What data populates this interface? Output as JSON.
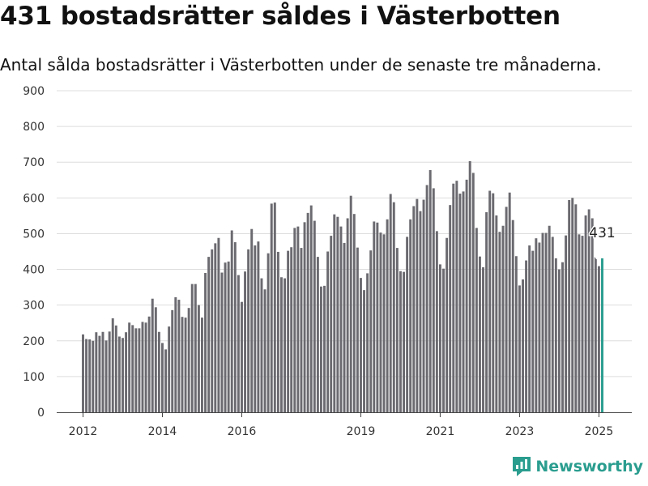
{
  "title": "431 bostadsrätter såldes i Västerbotten",
  "subtitle": "Antal sålda bostadsrätter i Västerbotten under de senaste tre månaderna.",
  "brand": "Newsworthy",
  "colors": {
    "bar": "#6b6a70",
    "highlight": "#2a9d8f",
    "grid": "#dddddd",
    "brand": "#2a9d8f"
  },
  "chart_data": {
    "type": "bar",
    "title": "431 bostadsrätter såldes i Västerbotten",
    "subtitle": "Antal sålda bostadsrätter i Västerbotten under de senaste tre månaderna.",
    "xlabel": "",
    "ylabel": "",
    "ylim": [
      0,
      900
    ],
    "yticks": [
      0,
      100,
      200,
      300,
      400,
      500,
      600,
      700,
      800,
      900
    ],
    "grid": true,
    "start": "2012-01",
    "xticks": [
      {
        "label": "2012",
        "month": "2012-01"
      },
      {
        "label": "2014",
        "month": "2014-01"
      },
      {
        "label": "2016",
        "month": "2016-01"
      },
      {
        "label": "2019",
        "month": "2019-01"
      },
      {
        "label": "2021",
        "month": "2021-01"
      },
      {
        "label": "2023",
        "month": "2023-01"
      },
      {
        "label": "2025",
        "month": "2025-01"
      }
    ],
    "annotation": {
      "text": "431",
      "month": "2025-02"
    },
    "highlight_last": true,
    "values": [
      218,
      205,
      204,
      200,
      224,
      214,
      225,
      201,
      226,
      263,
      243,
      212,
      208,
      224,
      251,
      244,
      235,
      235,
      253,
      251,
      268,
      318,
      294,
      225,
      194,
      176,
      240,
      286,
      322,
      315,
      267,
      265,
      292,
      359,
      359,
      300,
      265,
      390,
      435,
      456,
      473,
      488,
      391,
      419,
      422,
      509,
      476,
      384,
      309,
      394,
      456,
      513,
      467,
      478,
      375,
      344,
      445,
      584,
      587,
      449,
      378,
      375,
      452,
      462,
      516,
      520,
      460,
      532,
      558,
      579,
      536,
      435,
      352,
      354,
      450,
      494,
      554,
      547,
      520,
      474,
      543,
      606,
      555,
      461,
      376,
      342,
      389,
      453,
      534,
      531,
      503,
      498,
      540,
      611,
      588,
      460,
      395,
      393,
      491,
      540,
      577,
      597,
      563,
      595,
      636,
      678,
      627,
      507,
      414,
      402,
      488,
      580,
      640,
      648,
      612,
      618,
      651,
      703,
      670,
      516,
      436,
      406,
      560,
      620,
      613,
      551,
      505,
      522,
      575,
      615,
      538,
      437,
      355,
      372,
      425,
      467,
      452,
      487,
      475,
      502,
      502,
      522,
      491,
      431,
      400,
      420,
      495,
      594,
      600,
      582,
      498,
      494,
      551,
      568,
      543,
      434,
      409,
      431
    ]
  }
}
